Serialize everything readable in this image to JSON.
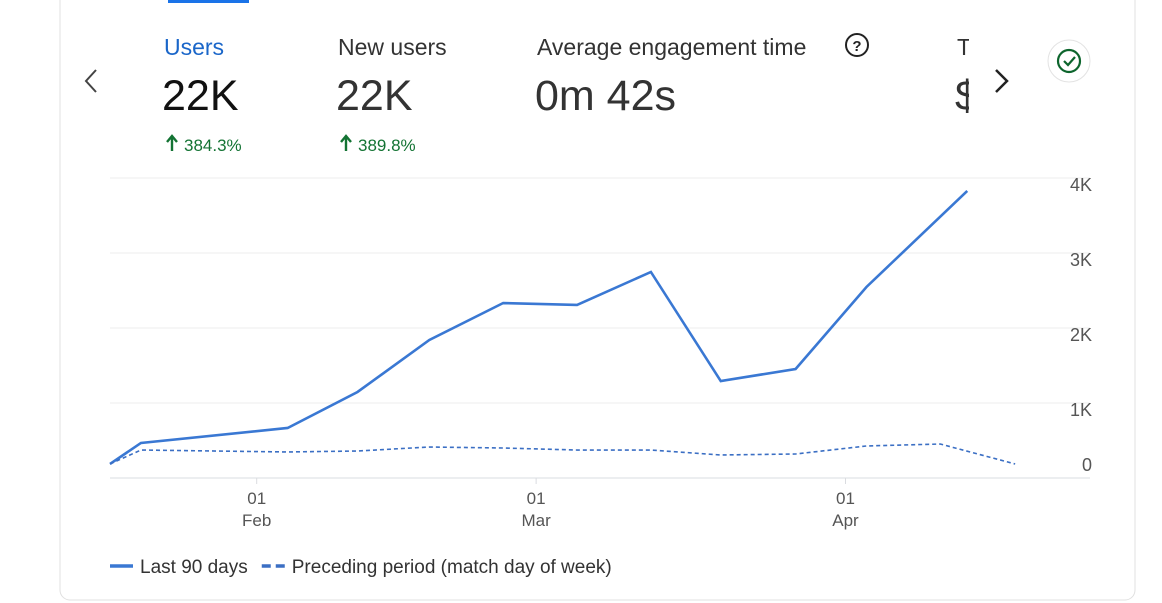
{
  "metrics": [
    {
      "label": "Users",
      "value": "22K",
      "change": "384.3%"
    },
    {
      "label": "New users",
      "value": "22K",
      "change": "389.8%"
    },
    {
      "label": "Average engagement time",
      "value": "0m 42s"
    },
    {
      "label": "T",
      "value": "$"
    }
  ],
  "chart_data": {
    "type": "line",
    "xlim": [
      17.3,
      115.5
    ],
    "xticks": [
      {
        "value": 32,
        "label": "01 Feb"
      },
      {
        "value": 60,
        "label": "01 Mar"
      },
      {
        "value": 91,
        "label": "01 Apr"
      }
    ],
    "ylim": [
      0,
      4000
    ],
    "yticks": [
      0,
      {
        "value": 1000,
        "label": "1K"
      },
      {
        "value": 2000,
        "label": "2K"
      },
      {
        "value": 3000,
        "label": "3K"
      },
      {
        "value": 4000,
        "label": "4K"
      }
    ],
    "grid": true,
    "series": [
      {
        "name": "Last 90 days",
        "color": "#3a78d3",
        "dashed": false,
        "x": [
          17.3,
          20.4,
          35.1,
          42.1,
          49.3,
          56.7,
          64.1,
          71.5,
          78.5,
          86,
          93.1,
          103.2
        ],
        "values": [
          187,
          467,
          667,
          1147,
          1840,
          2333,
          2307,
          2747,
          1293,
          1453,
          2547,
          3827
        ]
      },
      {
        "name": "Preceding period (match day of week)",
        "color": "#3b6fc4",
        "dashed": true,
        "x": [
          17.3,
          20.4,
          35.1,
          42.1,
          49.3,
          56.7,
          64.1,
          71.5,
          78.5,
          86,
          93.1,
          100.5,
          108
        ],
        "values": [
          187,
          373,
          347,
          360,
          413,
          400,
          373,
          373,
          307,
          320,
          427,
          453,
          187
        ]
      }
    ]
  }
}
